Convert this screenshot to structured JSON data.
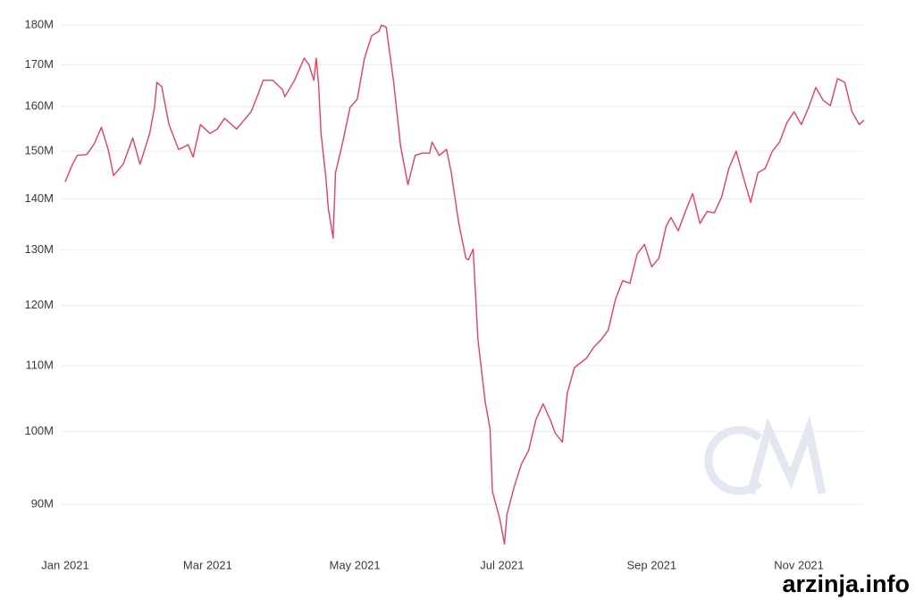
{
  "chart_data": {
    "type": "line",
    "log_scale": true,
    "grid": true,
    "color": "#e2405c",
    "x": [
      0,
      3,
      5,
      9,
      12,
      15,
      18,
      20,
      24,
      28,
      31,
      35,
      37,
      38,
      40,
      43,
      47,
      51,
      53,
      56,
      60,
      63,
      66,
      71,
      77,
      80,
      82,
      86,
      90,
      91,
      95,
      99,
      101,
      103,
      104,
      105,
      106,
      108,
      109,
      111,
      112,
      115,
      118,
      121,
      124,
      127,
      130,
      131,
      133,
      136,
      139,
      142,
      145,
      148,
      151,
      152,
      155,
      158,
      160,
      163,
      166,
      167,
      169,
      171,
      174,
      176,
      177,
      180,
      182,
      183,
      186,
      189,
      192,
      195,
      198,
      201,
      203,
      206,
      208,
      211,
      216,
      219,
      222,
      225,
      228,
      231,
      234,
      237,
      240,
      243,
      246,
      249,
      251,
      254,
      257,
      260,
      263,
      266,
      269,
      272,
      275,
      278,
      281,
      284,
      287,
      290,
      293,
      296,
      299,
      302,
      305,
      308,
      311,
      314,
      317,
      320,
      323,
      326,
      329,
      331
    ],
    "values": [
      143.5,
      147.2,
      149.1,
      149.3,
      151.6,
      155.3,
      150,
      144.8,
      147.2,
      152.9,
      147.2,
      153.9,
      159.8,
      165.7,
      164.7,
      155.9,
      150.4,
      151.4,
      148.7,
      155.9,
      153.9,
      154.9,
      157.3,
      154.9,
      158.8,
      163.0,
      166.2,
      166.2,
      164.0,
      162.3,
      166.2,
      171.6,
      170,
      166.2,
      171.6,
      165.1,
      153.9,
      144.4,
      138.1,
      132.3,
      145.4,
      152.0,
      159.8,
      161.7,
      171.6,
      177.3,
      178.4,
      180,
      179.5,
      166.2,
      151.0,
      142.9,
      149.1,
      149.6,
      149.6,
      152.0,
      149.1,
      150.4,
      145.4,
      135.4,
      128.5,
      128.2,
      130.2,
      114.2,
      104.4,
      100.4,
      91.7,
      88.2,
      85.0,
      88.7,
      92.3,
      95.4,
      97.3,
      101.7,
      104.1,
      101.7,
      99.8,
      98.5,
      105.7,
      109.7,
      111.2,
      113.0,
      114.2,
      115.8,
      121.1,
      124.4,
      123.9,
      129.3,
      131.1,
      126.9,
      128.5,
      134.6,
      136.3,
      133.7,
      137.5,
      141.1,
      135.1,
      137.5,
      137.2,
      140.4,
      146.3,
      150,
      144.4,
      139.3,
      145.4,
      146.3,
      150,
      152.0,
      156.3,
      158.8,
      155.9,
      159.8,
      164.5,
      161.5,
      160.2,
      166.6,
      165.7,
      158.8,
      155.9,
      156.9
    ],
    "xlim": [
      0,
      331
    ],
    "xticks": [
      {
        "value": 0,
        "label": "Jan 2021"
      },
      {
        "value": 59,
        "label": "Mar 2021"
      },
      {
        "value": 120,
        "label": "May 2021"
      },
      {
        "value": 181,
        "label": "Jul 2021"
      },
      {
        "value": 243,
        "label": "Sep 2021"
      },
      {
        "value": 304,
        "label": "Nov 2021"
      }
    ],
    "ylim": [
      84.6,
      181.9
    ],
    "yticks": [
      {
        "value": 90,
        "label": "90M"
      },
      {
        "value": 100,
        "label": "100M"
      },
      {
        "value": 110,
        "label": "110M"
      },
      {
        "value": 120,
        "label": "120M"
      },
      {
        "value": 130,
        "label": "130M"
      },
      {
        "value": 140,
        "label": "140M"
      },
      {
        "value": 150,
        "label": "150M"
      },
      {
        "value": 160,
        "label": "160M"
      },
      {
        "value": 170,
        "label": "170M"
      },
      {
        "value": 180,
        "label": "180M"
      }
    ],
    "watermark": "arzinja.info"
  }
}
